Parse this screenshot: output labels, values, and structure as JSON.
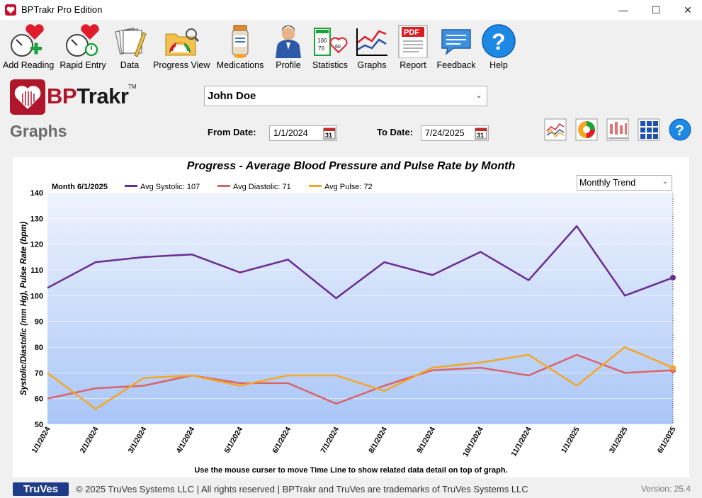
{
  "window": {
    "title": "BPTrakr Pro Edition",
    "minimize": "—",
    "maximize": "☐",
    "close": "✕"
  },
  "toolbar": [
    {
      "label": "Add Reading",
      "icon": "add-reading-icon"
    },
    {
      "label": "Rapid Entry",
      "icon": "rapid-entry-icon"
    },
    {
      "label": "Data",
      "icon": "data-icon"
    },
    {
      "label": "Progress View",
      "icon": "progress-view-icon"
    },
    {
      "label": "Medications",
      "icon": "medications-icon"
    },
    {
      "label": "Profile",
      "icon": "profile-icon"
    },
    {
      "label": "Statistics",
      "icon": "statistics-icon"
    },
    {
      "label": "Graphs",
      "icon": "graphs-icon"
    },
    {
      "label": "Report",
      "icon": "report-pdf-icon"
    },
    {
      "label": "Feedback",
      "icon": "feedback-icon"
    },
    {
      "label": "Help",
      "icon": "help-icon"
    }
  ],
  "brand": {
    "logo_bp": "BP",
    "logo_rest": "Trakr",
    "logo_tm": "TM",
    "page_title": "Graphs"
  },
  "patient": {
    "selected": "John Doe"
  },
  "dates": {
    "from_label": "From Date:",
    "from_value": "1/1/2024",
    "to_label": "To Date:",
    "to_value": "7/24/2025"
  },
  "view_buttons": [
    "line-graph-view-icon",
    "pie-chart-view-icon",
    "candlestick-view-icon",
    "grid-view-icon",
    "graph-help-icon"
  ],
  "chart": {
    "title": "Progress - Average Blood Pressure and Pulse Rate by Month",
    "trend_option": "Monthly Trend",
    "legend_month": "Month 6/1/2025",
    "legend": [
      {
        "label": "Avg Systolic: 107",
        "color": "#6a2c91"
      },
      {
        "label": "Avg Diastolic: 71",
        "color": "#d9636b"
      },
      {
        "label": "Avg Pulse: 72",
        "color": "#f5a623"
      }
    ],
    "hint": "Use the mouse curser to move Time Line to show related data detail on top of graph."
  },
  "chart_data": {
    "type": "line",
    "title": "Progress - Average Blood Pressure and Pulse Rate by Month",
    "xlabel": "",
    "ylabel": "Systolic/Diastolic (mm Hg), Pulse Rate (bpm)",
    "ylim": [
      50,
      140
    ],
    "yticks": [
      50,
      60,
      70,
      80,
      90,
      100,
      110,
      120,
      130,
      140
    ],
    "categories": [
      "1/1/2024",
      "2/1/2024",
      "3/1/2024",
      "4/1/2024",
      "5/1/2024",
      "6/1/2024",
      "7/1/2024",
      "8/1/2024",
      "9/1/2024",
      "10/1/2024",
      "11/1/2024",
      "1/1/2025",
      "3/1/2025",
      "6/1/2025"
    ],
    "series": [
      {
        "name": "Avg Systolic",
        "color": "#6a2c91",
        "values": [
          103,
          113,
          115,
          116,
          109,
          114,
          99,
          113,
          108,
          117,
          106,
          127,
          100,
          107
        ]
      },
      {
        "name": "Avg Diastolic",
        "color": "#d9636b",
        "values": [
          60,
          64,
          65,
          69,
          66,
          66,
          58,
          65,
          71,
          72,
          69,
          77,
          70,
          71
        ]
      },
      {
        "name": "Avg Pulse",
        "color": "#f5a623",
        "values": [
          70,
          56,
          68,
          69,
          65,
          69,
          69,
          63,
          72,
          74,
          77,
          65,
          80,
          72
        ]
      }
    ],
    "timeline_at": "6/1/2025",
    "grid": true,
    "legend_position": "top-left"
  },
  "footer": {
    "truves": "TruVes",
    "copyright": "© 2025 TruVes Systems LLC | All rights reserved | BPTrakr and TruVes are trademarks of TruVes Systems LLC",
    "version": "Version: 25.4"
  }
}
